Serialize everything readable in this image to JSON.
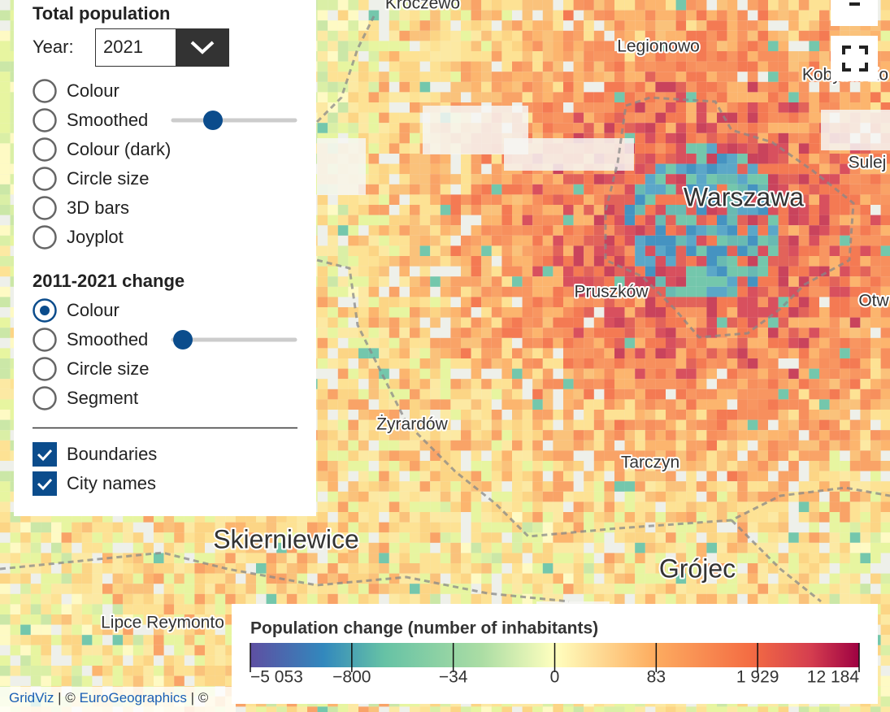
{
  "panel": {
    "total_title": "Total population",
    "year_label": "Year:",
    "year_value": "2021",
    "total_options": [
      "Colour",
      "Smoothed",
      "Colour (dark)",
      "Circle size",
      "3D bars",
      "Joyplot"
    ],
    "change_title": "2011-2021 change",
    "change_options": [
      "Colour",
      "Smoothed",
      "Circle size",
      "Segment"
    ],
    "checkboxes": [
      "Boundaries",
      "City names"
    ]
  },
  "map": {
    "cities": [
      {
        "name": "Kroczewo",
        "size": "small"
      },
      {
        "name": "Legionowo",
        "size": "small"
      },
      {
        "name": "Kobyłka Ko",
        "size": "small"
      },
      {
        "name": "Sulej",
        "size": "small"
      },
      {
        "name": "Warszawa",
        "size": "large"
      },
      {
        "name": "Pruszków",
        "size": "small"
      },
      {
        "name": "Otw",
        "size": "small"
      },
      {
        "name": "Żyrardów",
        "size": "small"
      },
      {
        "name": "Tarczyn",
        "size": "small"
      },
      {
        "name": "Skierniewice",
        "size": "large"
      },
      {
        "name": "Grójec",
        "size": "large"
      },
      {
        "name": "Lipce Reymonto",
        "size": "small"
      }
    ]
  },
  "legend": {
    "title": "Population change (number of inhabitants)",
    "ticks": [
      "−5 053",
      "−800",
      "−34",
      "0",
      "83",
      "1 929",
      "12 184"
    ]
  },
  "attribution": [
    "GridViz",
    " | © ",
    "EuroGeographics",
    " | ©"
  ]
}
